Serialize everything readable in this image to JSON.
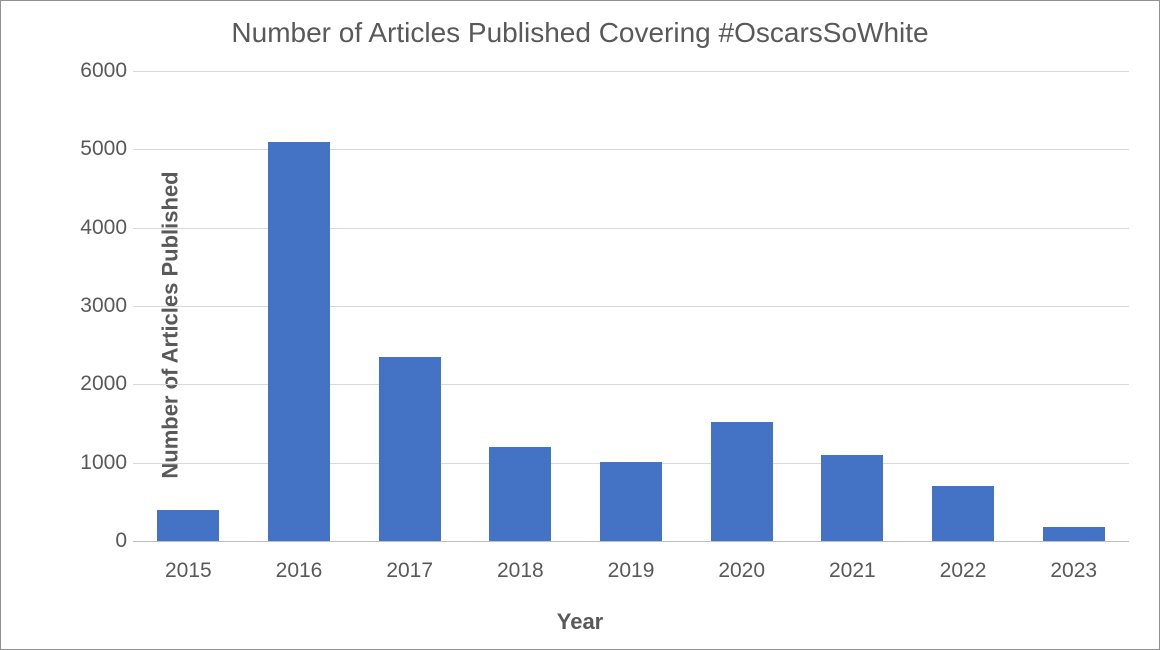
{
  "chart": {
    "type": "bar",
    "title": "Number of Articles Published Covering #OscarsSoWhite",
    "title_fontsize": 28,
    "title_color": "#595959",
    "x_axis": {
      "label": "Year",
      "label_fontsize": 22,
      "label_fontweight": 700,
      "categories": [
        "2015",
        "2016",
        "2017",
        "2018",
        "2019",
        "2020",
        "2021",
        "2022",
        "2023"
      ],
      "tick_fontsize": 21,
      "tick_color": "#595959"
    },
    "y_axis": {
      "label": "Number of Articles Published",
      "label_fontsize": 22,
      "label_fontweight": 700,
      "min": 0,
      "max": 6000,
      "tick_step": 1000,
      "ticks": [
        0,
        1000,
        2000,
        3000,
        4000,
        5000,
        6000
      ],
      "tick_fontsize": 21,
      "tick_color": "#595959"
    },
    "values": [
      400,
      5100,
      2350,
      1200,
      1010,
      1520,
      1100,
      700,
      180
    ],
    "bar_color": "#4472c4",
    "bar_width_ratio": 0.56,
    "background_color": "#ffffff",
    "grid_color": "#d9d9d9",
    "baseline_color": "#bfbfbf",
    "border_color": "#909090"
  }
}
